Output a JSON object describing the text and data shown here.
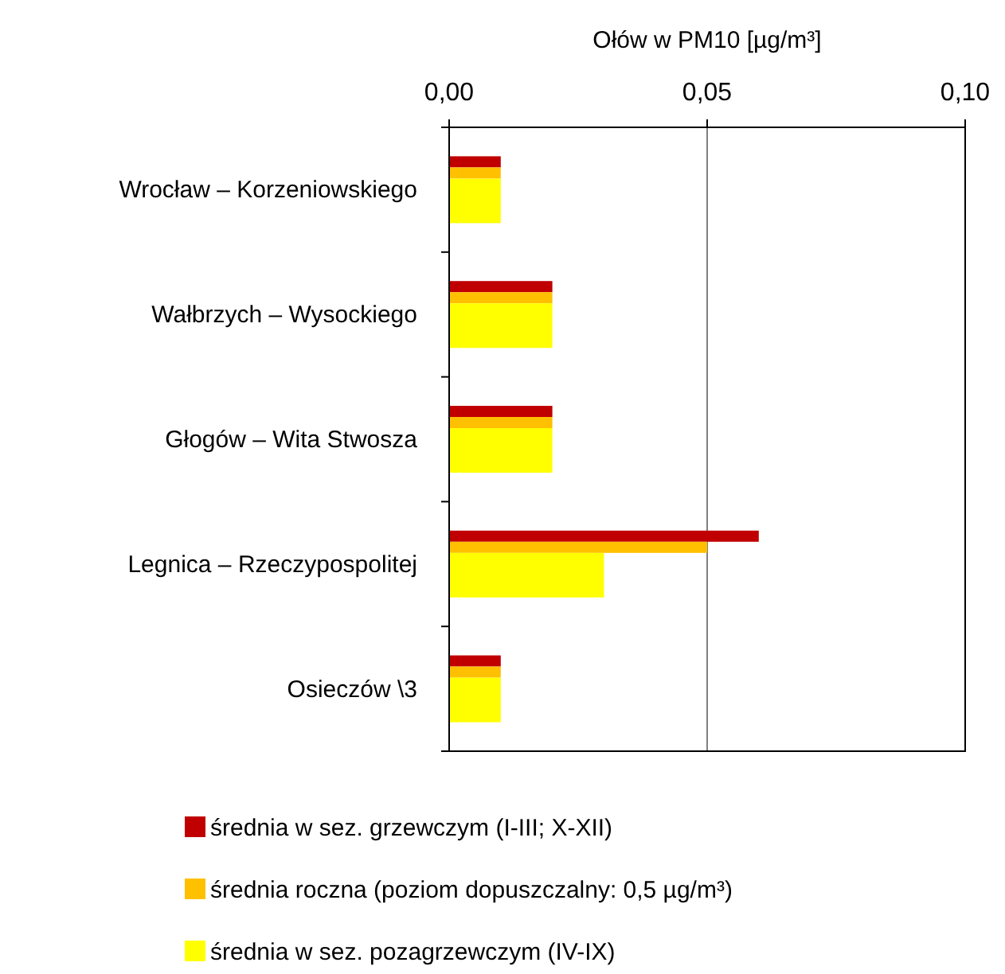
{
  "chart_data": {
    "type": "bar",
    "orientation": "horizontal",
    "xlabel": "Ołów w PM10 [µg/m³]",
    "categories": [
      "Wrocław – Korzeniowskiego",
      "Wałbrzych – Wysockiego",
      "Głogów – Wita Stwosza",
      "Legnica – Rzeczypospolitej",
      "Osieczów \\3"
    ],
    "series": [
      {
        "name": "średnia w sez. grzewczym (I-III; X-XII)",
        "color": "#c00000",
        "values": [
          0.01,
          0.02,
          0.02,
          0.06,
          0.01
        ]
      },
      {
        "name": "średnia roczna (poziom dopuszczalny: 0,5 µg/m³)",
        "color": "#ffc000",
        "values": [
          0.01,
          0.02,
          0.02,
          0.05,
          0.01
        ]
      },
      {
        "name": "średnia w sez. pozagrzewczym (IV-IX)",
        "color": "#ffff00",
        "values": [
          0.01,
          0.02,
          0.02,
          0.03,
          0.01
        ]
      }
    ],
    "xlim": [
      0,
      0.1
    ],
    "xticks": [
      {
        "value": 0,
        "label": "0,00"
      },
      {
        "value": 0.05,
        "label": "0,05"
      },
      {
        "value": 0.1,
        "label": "0,10"
      }
    ],
    "grid": "x",
    "legend": "bottom"
  }
}
